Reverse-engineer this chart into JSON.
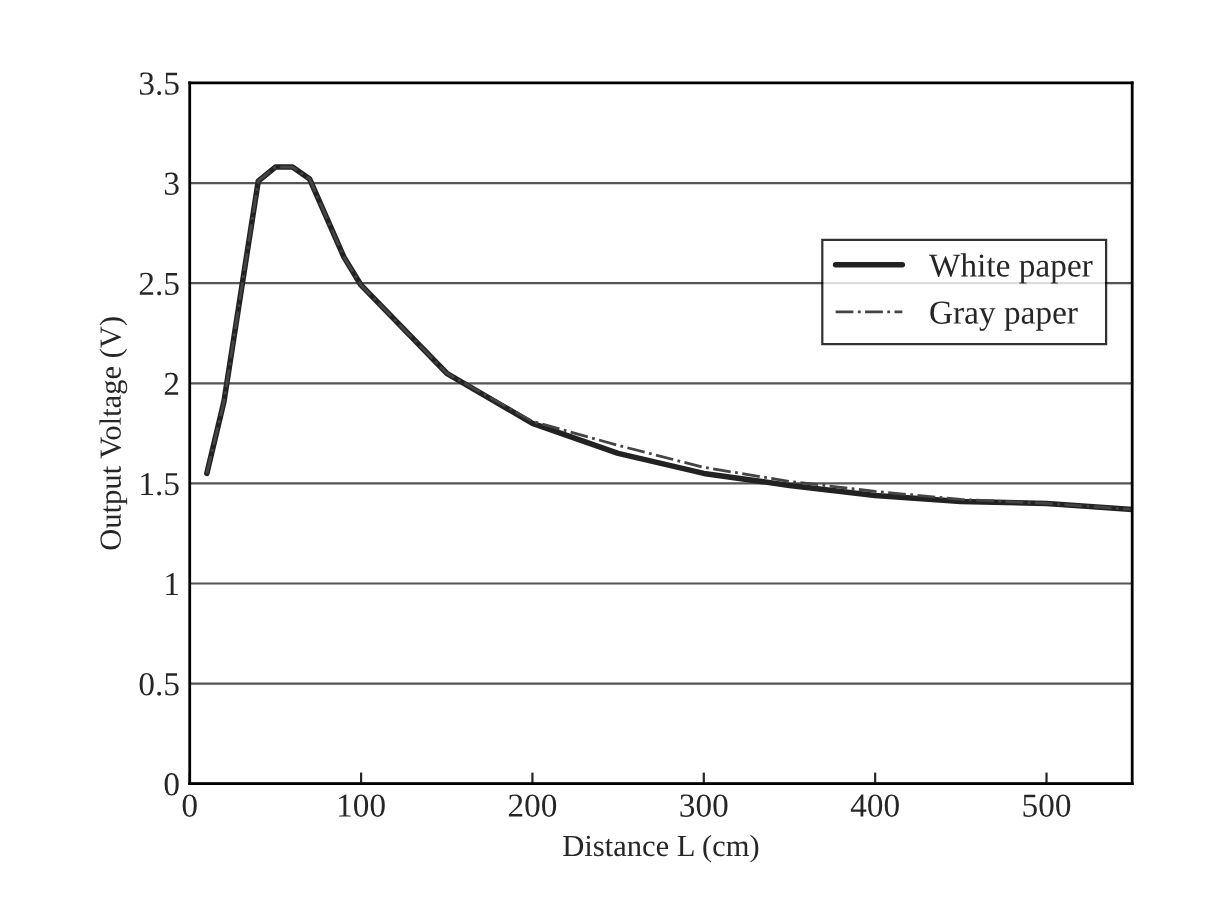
{
  "chart_data": {
    "type": "line",
    "xlabel": "Distance L (cm)",
    "ylabel": "Output Voltage (V)",
    "xlim": [
      0,
      550
    ],
    "xticks": [
      0,
      100,
      200,
      300,
      400,
      500
    ],
    "ylim": [
      0,
      3.5
    ],
    "yticks": [
      0,
      0.5,
      1,
      1.5,
      2,
      2.5,
      3,
      3.5
    ],
    "grid": "y",
    "legend": "top right",
    "marker": "none",
    "series": [
      {
        "name": "White paper",
        "color": "#222222",
        "line_style": "solid",
        "x": [
          10,
          20,
          40,
          50,
          60,
          70,
          90,
          100,
          150,
          200,
          250,
          300,
          350,
          400,
          450,
          500,
          550
        ],
        "values": [
          1.55,
          1.91,
          3.01,
          3.08,
          3.08,
          3.02,
          2.63,
          2.49,
          2.05,
          1.8,
          1.65,
          1.55,
          1.49,
          1.44,
          1.41,
          1.4,
          1.37
        ]
      },
      {
        "name": "Gray paper",
        "color": "#444444",
        "line_style": "dashdot",
        "x": [
          10,
          20,
          40,
          50,
          60,
          70,
          90,
          100,
          150,
          200,
          250,
          300,
          350,
          400,
          450,
          500,
          550
        ],
        "values": [
          1.55,
          1.91,
          3.01,
          3.08,
          3.08,
          3.02,
          2.63,
          2.49,
          2.05,
          1.81,
          1.69,
          1.58,
          1.51,
          1.46,
          1.42,
          1.4,
          1.37
        ]
      }
    ]
  }
}
